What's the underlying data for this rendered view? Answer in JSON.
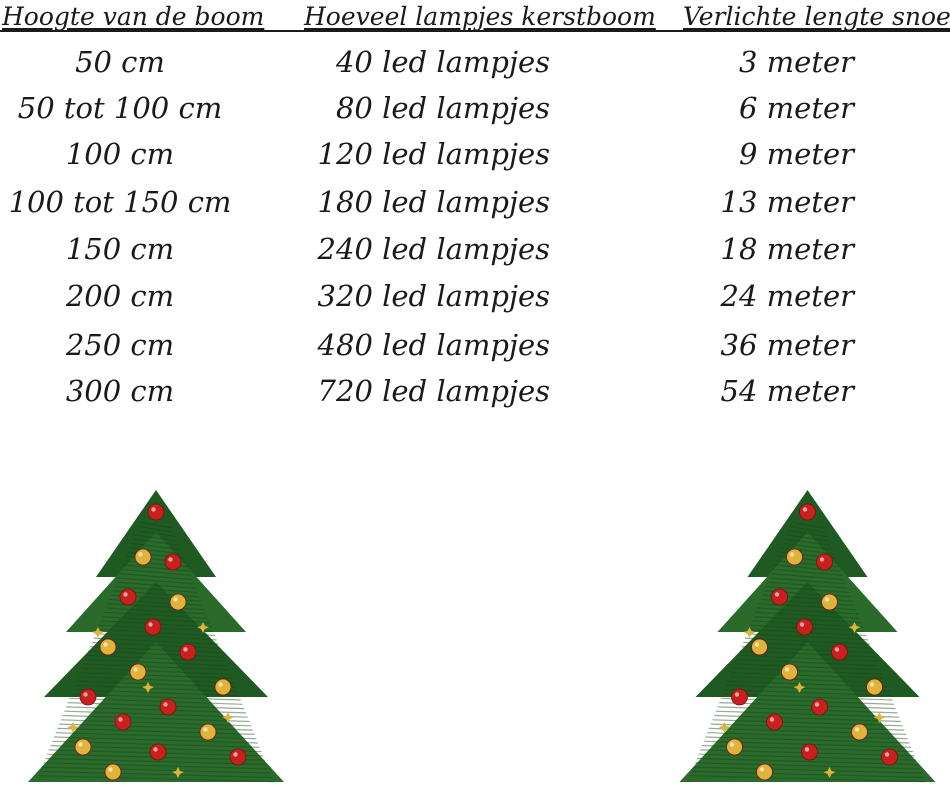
{
  "headers": {
    "height": "Hoogte van de boom",
    "lamps": "Hoeveel lampjes kerstboom",
    "length": "Verlichte lengte snoer"
  },
  "rows": [
    {
      "height": "50 cm",
      "lamps": "40 led lampjes",
      "length": "3 meter"
    },
    {
      "height": "50 tot 100 cm",
      "lamps": "80 led lampjes",
      "length": "6 meter"
    },
    {
      "height": "100 cm",
      "lamps": "120 led lampjes",
      "length": "9 meter"
    },
    {
      "height": "100 tot 150 cm",
      "lamps": "180 led lampjes",
      "length": "13 meter"
    },
    {
      "height": "150 cm",
      "lamps": "240 led lampjes",
      "length": "18 meter"
    },
    {
      "height": "200 cm",
      "lamps": "320 led lampjes",
      "length": "24 meter"
    },
    {
      "height": "250 cm",
      "lamps": "480 led lampjes",
      "length": "36 meter"
    },
    {
      "height": "300 cm",
      "lamps": "720 led lampjes",
      "length": "54 meter"
    }
  ],
  "decorations": {
    "left_icon": "christmas-tree-icon",
    "right_icon": "christmas-tree-icon",
    "colors": {
      "tree_green": "#1f5a22",
      "bauble_red": "#c8201f",
      "bauble_gold": "#e0b43a",
      "text": "#1a1a1a"
    }
  }
}
